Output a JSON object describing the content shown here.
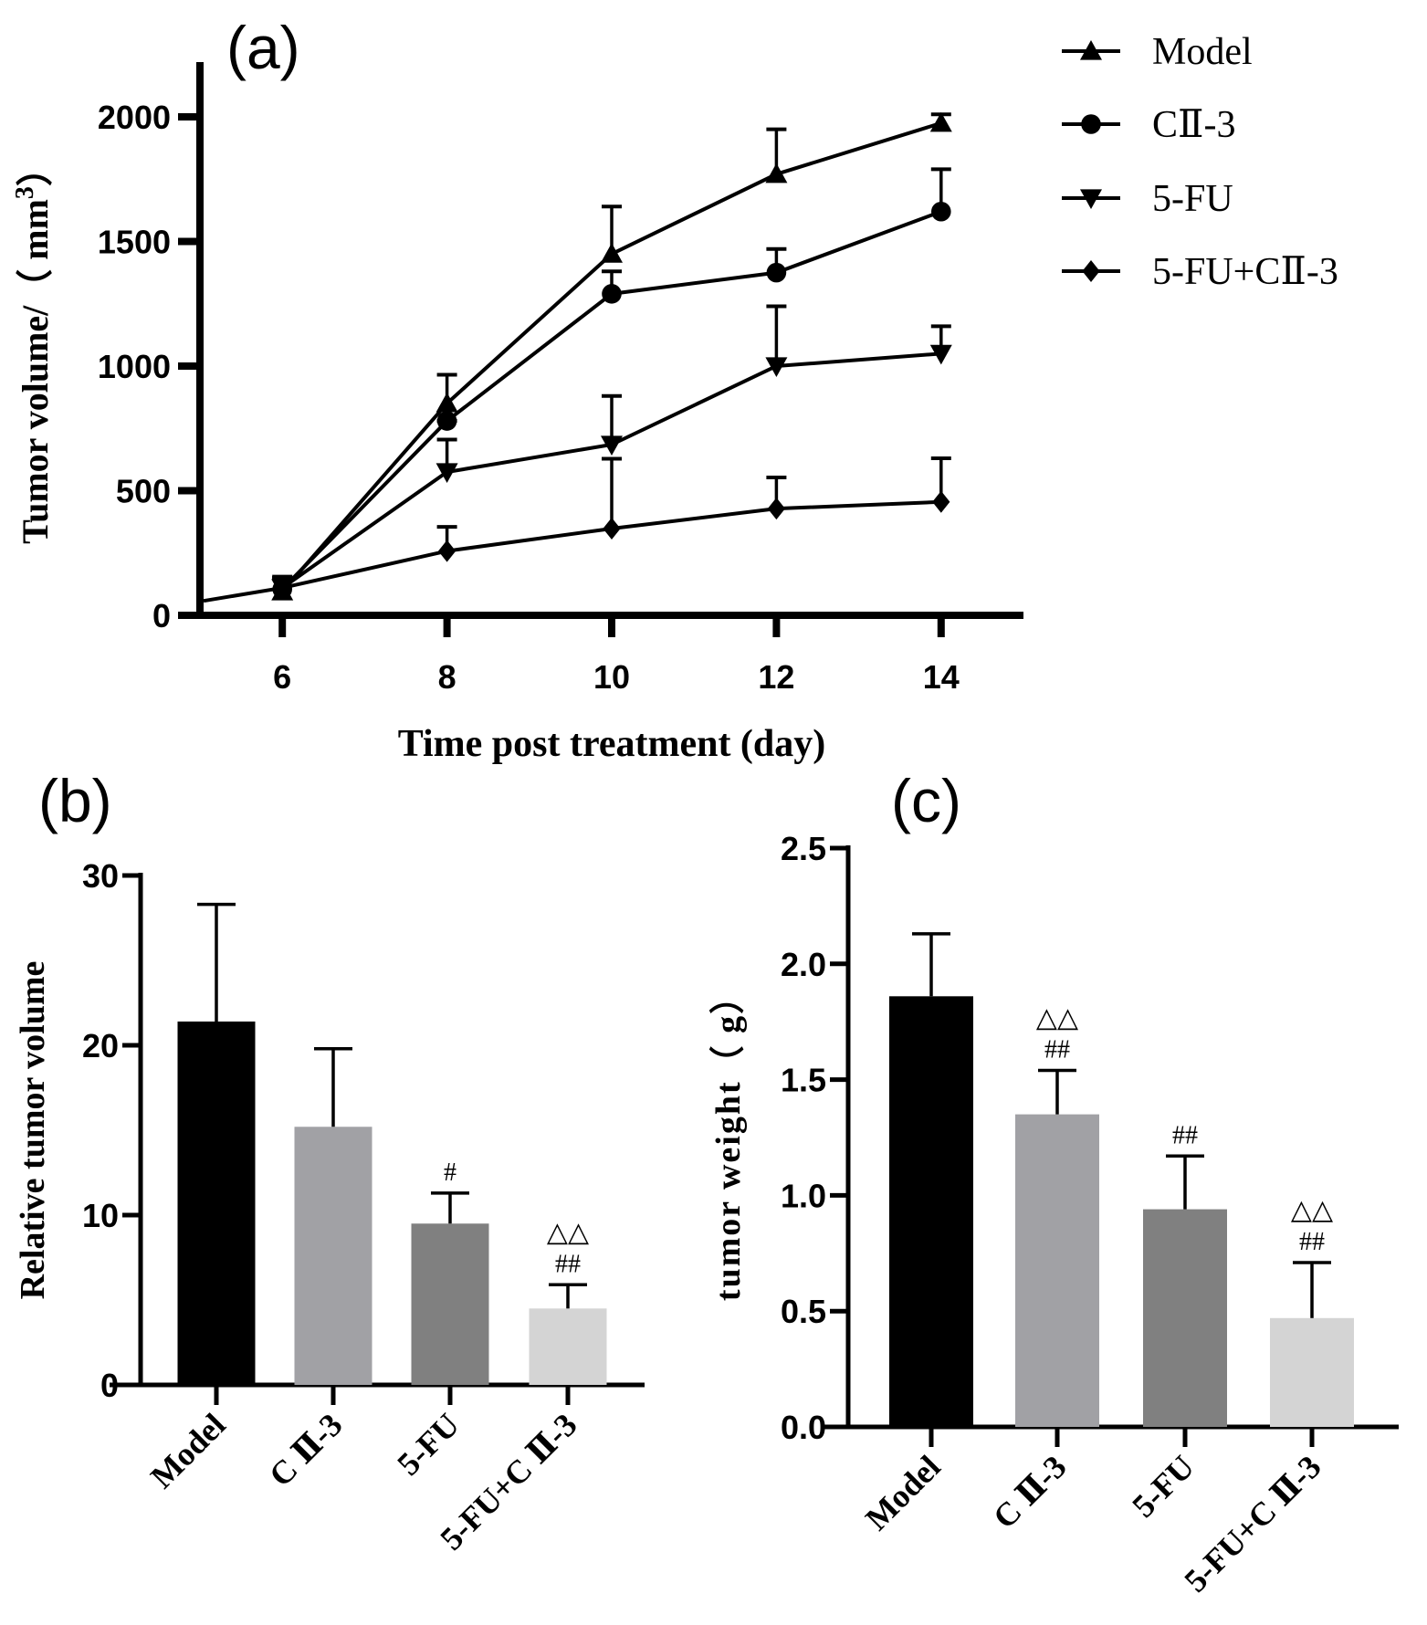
{
  "chart_data": [
    {
      "id": "a",
      "type": "line",
      "panel_label": "(a)",
      "title": "",
      "xlabel": "Time post treatment (day)",
      "ylabel": "Tumor volume/（ mm³）",
      "ylabel_main": "Tumor volume/（ mm",
      "ylabel_sup": "3",
      "ylabel_end": "）",
      "xlim": [
        5,
        15
      ],
      "ylim": [
        0,
        2250
      ],
      "xticks": [
        6,
        8,
        10,
        12,
        14
      ],
      "xtick_labels": [
        "6",
        "8",
        "10",
        "12",
        "14"
      ],
      "yticks": [
        0,
        500,
        1000,
        1500,
        2000
      ],
      "ytick_labels": [
        "0",
        "500",
        "1000",
        "1500",
        "2000"
      ],
      "grid": false,
      "legend_position": "top-right, outside plot",
      "x": [
        6,
        8,
        10,
        12,
        14
      ],
      "series": [
        {
          "name": "Model",
          "marker": "triangle-up",
          "values": [
            95,
            850,
            1450,
            1770,
            1975
          ],
          "error_upper": [
            155,
            965,
            1640,
            1950,
            2010
          ]
        },
        {
          "name": "CⅡ-3",
          "marker": "circle",
          "values": [
            105,
            780,
            1290,
            1375,
            1620
          ],
          "error_upper": [
            150,
            780,
            1380,
            1470,
            1790
          ]
        },
        {
          "name": "5-FU",
          "marker": "triangle-down",
          "values": [
            110,
            575,
            685,
            1000,
            1050
          ],
          "error_upper": [
            150,
            705,
            880,
            1240,
            1160
          ]
        },
        {
          "name": "5-FU+CⅡ-3",
          "marker": "diamond",
          "values": [
            110,
            258,
            348,
            428,
            455
          ],
          "error_upper": [
            150,
            355,
            628,
            553,
            630
          ],
          "extension_start": {
            "x": 5,
            "y": 58
          }
        }
      ]
    },
    {
      "id": "b",
      "type": "bar",
      "panel_label": "(b)",
      "title": "",
      "xlabel": "",
      "ylabel": "Relative tumor volume",
      "ylim": [
        0,
        30
      ],
      "yticks": [
        0,
        10,
        20,
        30
      ],
      "ytick_labels": [
        "0",
        "10",
        "20",
        "30"
      ],
      "grid": false,
      "categories": [
        "Model",
        "C Ⅱ-3",
        "5-FU",
        "5-FU+C Ⅱ-3"
      ],
      "values": [
        21.4,
        15.2,
        9.5,
        4.5
      ],
      "error_upper": [
        28.3,
        19.8,
        11.3,
        5.9
      ],
      "colors": [
        "#000000",
        "#a1a1a5",
        "#808080",
        "#d4d4d4"
      ],
      "annotations": [
        "",
        "",
        "#",
        "##"
      ],
      "annotations_top": [
        "",
        "",
        "",
        "△△"
      ]
    },
    {
      "id": "c",
      "type": "bar",
      "panel_label": "(c)",
      "title": "",
      "xlabel": "",
      "ylabel": "tumor weight（ g）",
      "ylim": [
        0,
        2.5
      ],
      "yticks": [
        0,
        0.5,
        1.0,
        1.5,
        2.0,
        2.5
      ],
      "ytick_labels": [
        "0.0",
        "0.5",
        "1.0",
        "1.5",
        "2.0",
        "2.5"
      ],
      "grid": false,
      "categories": [
        "Model",
        "C Ⅱ-3",
        "5-FU",
        "5-FU+C Ⅱ-3"
      ],
      "values": [
        1.86,
        1.35,
        0.94,
        0.47
      ],
      "error_upper": [
        2.13,
        1.54,
        1.17,
        0.71
      ],
      "colors": [
        "#000000",
        "#a1a1a5",
        "#808080",
        "#d4d4d4"
      ],
      "annotations": [
        "",
        "##",
        "##",
        "##"
      ],
      "annotations_top": [
        "",
        "△△",
        "",
        "△△"
      ]
    }
  ]
}
